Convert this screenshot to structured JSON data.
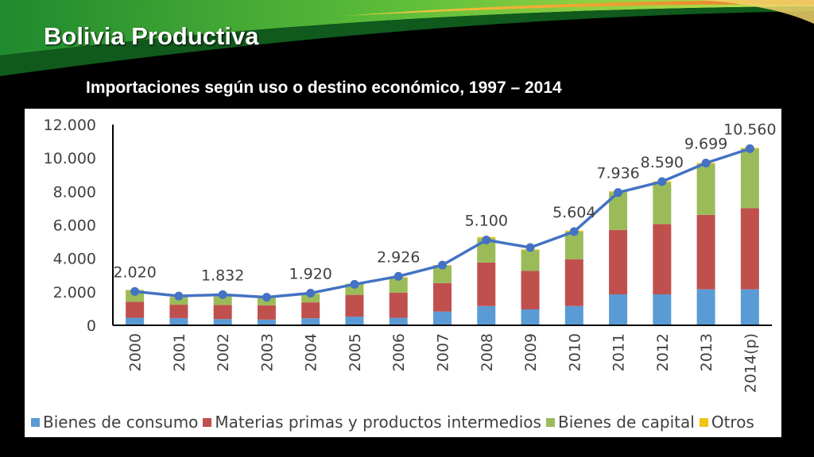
{
  "slide": {
    "title": "Bolivia Productiva",
    "chart_title": "Importaciones según uso o destino económico, 1997 – 2014"
  },
  "colors": {
    "consumo": "#5b9bd5",
    "materias": "#c0504d",
    "capital": "#9bbb59",
    "otros": "#f2c314",
    "line": "#4472c4"
  },
  "chart_data": {
    "type": "bar",
    "stacked": true,
    "with_line": true,
    "categories": [
      "2000",
      "2001",
      "2002",
      "2003",
      "2004",
      "2005",
      "2006",
      "2007",
      "2008",
      "2009",
      "2010",
      "2011",
      "2012",
      "2013",
      "2014(p)"
    ],
    "ylim": [
      0,
      12000
    ],
    "yticks": [
      0,
      2000,
      4000,
      6000,
      8000,
      10000,
      12000
    ],
    "ytick_labels": [
      "0",
      "2.000",
      "4.000",
      "6.000",
      "8.000",
      "10.000",
      "12.000"
    ],
    "series": [
      {
        "name": "Bienes de consumo",
        "key": "consumo",
        "values": [
          450,
          430,
          370,
          340,
          420,
          520,
          450,
          820,
          1150,
          950,
          1150,
          1850,
          1850,
          2150,
          2150
        ]
      },
      {
        "name": "Materias primas y productos intermedios",
        "key": "materias",
        "values": [
          950,
          800,
          850,
          850,
          950,
          1300,
          1500,
          1700,
          2600,
          2300,
          2800,
          3850,
          4200,
          4450,
          4850
        ]
      },
      {
        "name": "Bienes de capital",
        "key": "capital",
        "values": [
          700,
          450,
          600,
          450,
          500,
          650,
          900,
          1050,
          1450,
          1250,
          1650,
          2250,
          2500,
          3050,
          3550
        ]
      },
      {
        "name": "Otros",
        "key": "otros",
        "values": [
          20,
          20,
          20,
          20,
          20,
          20,
          30,
          30,
          80,
          40,
          60,
          60,
          60,
          60,
          60
        ]
      }
    ],
    "line": {
      "values": [
        2020,
        1750,
        1832,
        1680,
        1920,
        2450,
        2926,
        3600,
        5100,
        4650,
        5604,
        7936,
        8590,
        9699,
        10560
      ],
      "labels": [
        "2.020",
        "",
        "1.832",
        "",
        "1.920",
        "",
        "2.926",
        "",
        "5.100",
        "",
        "5.604",
        "7.936",
        "8.590",
        "9.699",
        "10.560"
      ]
    },
    "legend_position": "bottom",
    "grid": false
  }
}
